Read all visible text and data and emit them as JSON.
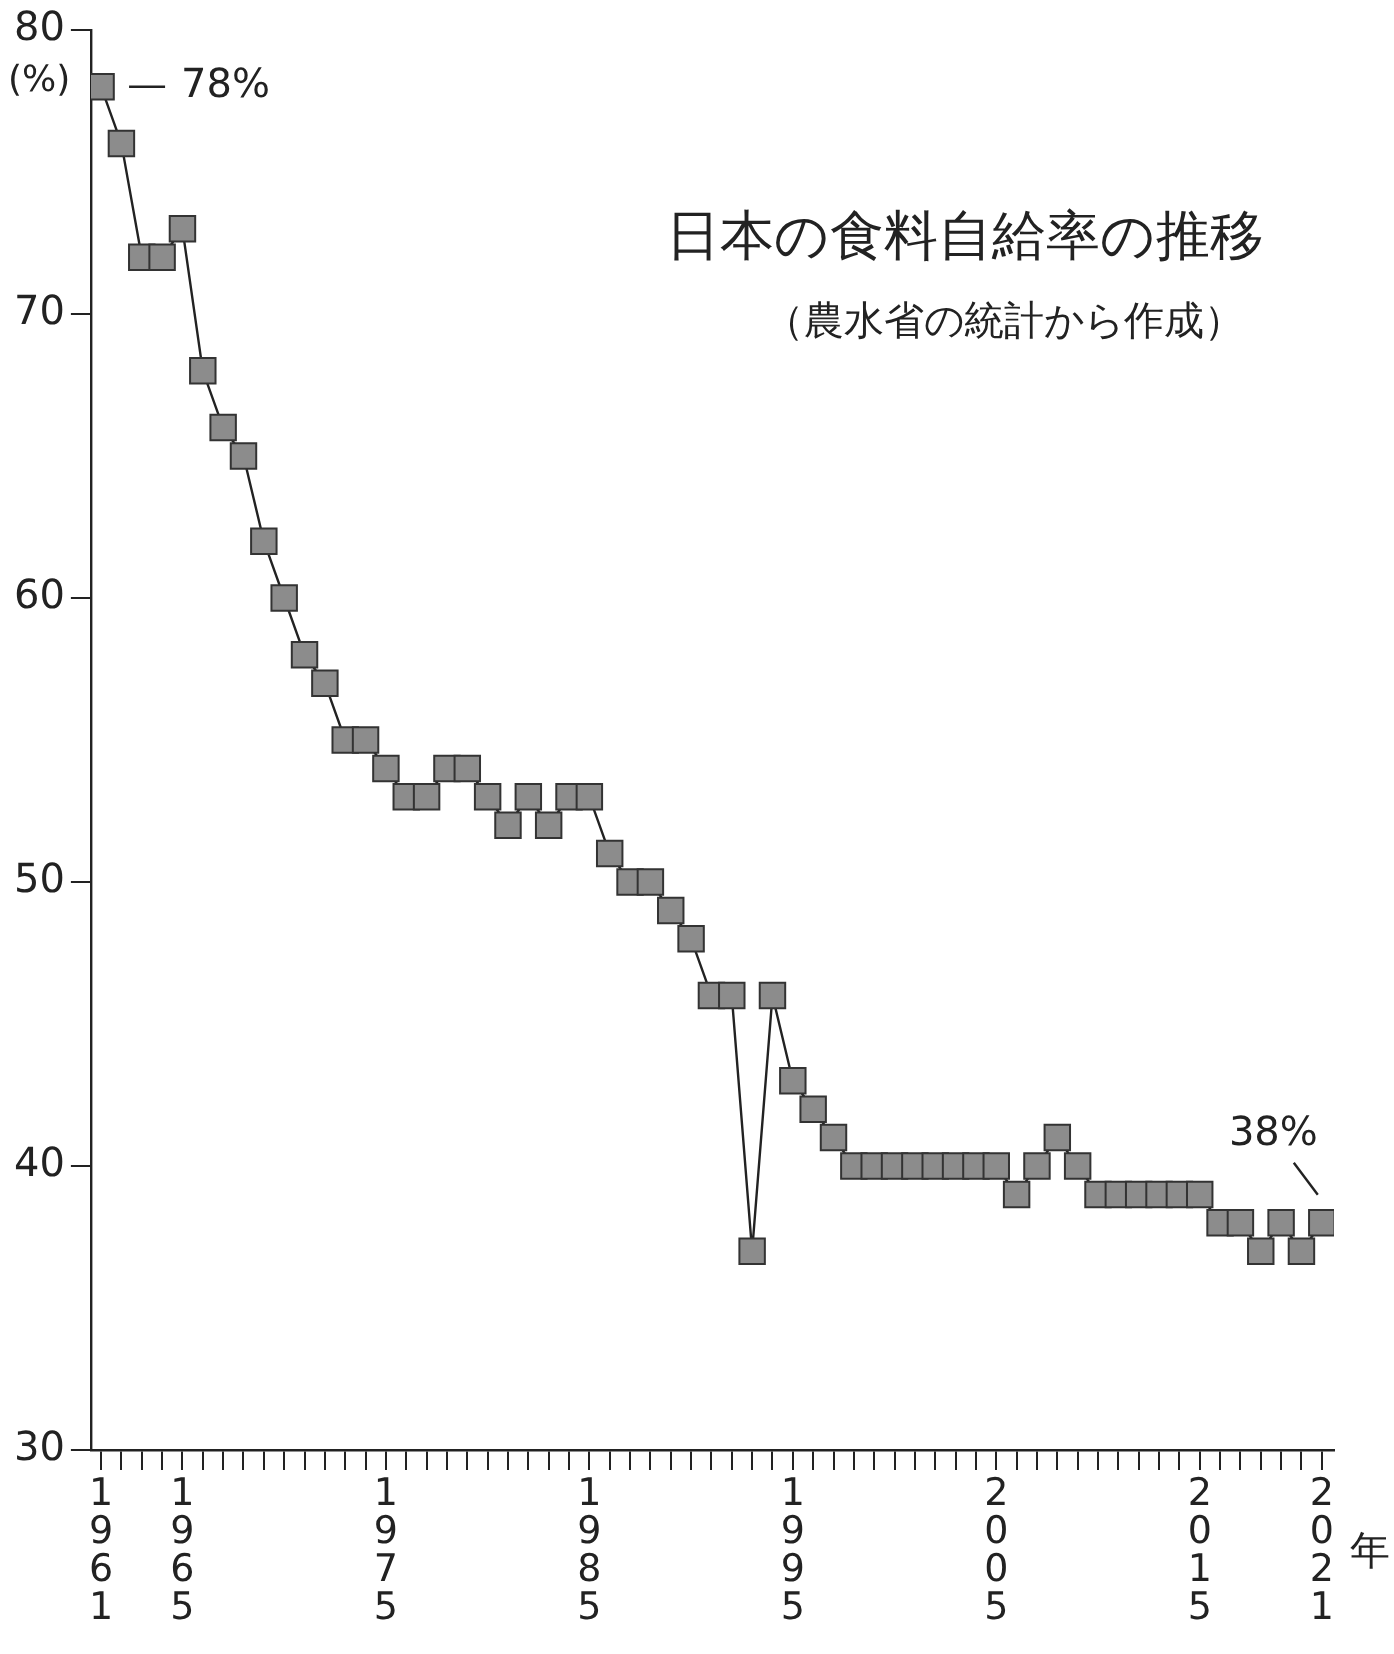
{
  "chart_data": {
    "type": "line",
    "title": "日本の食料自給率の推移",
    "subtitle": "（農水省の統計から作成）",
    "ylabel": "(%)",
    "xlabel": "年",
    "x": [
      1961,
      1962,
      1963,
      1964,
      1965,
      1966,
      1967,
      1968,
      1969,
      1970,
      1971,
      1972,
      1973,
      1974,
      1975,
      1976,
      1977,
      1978,
      1979,
      1980,
      1981,
      1982,
      1983,
      1984,
      1985,
      1986,
      1987,
      1988,
      1989,
      1990,
      1991,
      1992,
      1993,
      1994,
      1995,
      1996,
      1997,
      1998,
      1999,
      2000,
      2001,
      2002,
      2003,
      2004,
      2005,
      2006,
      2007,
      2008,
      2009,
      2010,
      2011,
      2012,
      2013,
      2014,
      2015,
      2016,
      2017,
      2018,
      2019,
      2020,
      2021
    ],
    "series": [
      {
        "color": "#8c8c8c",
        "values": [
          78,
          76,
          72,
          72,
          73,
          68,
          66,
          65,
          62,
          60,
          58,
          57,
          55,
          55,
          54,
          53,
          53,
          54,
          54,
          53,
          52,
          53,
          52,
          53,
          53,
          51,
          50,
          50,
          49,
          48,
          46,
          46,
          37,
          46,
          43,
          42,
          41,
          40,
          40,
          40,
          40,
          40,
          40,
          40,
          40,
          39,
          40,
          41,
          40,
          39,
          39,
          39,
          39,
          39,
          39,
          38,
          38,
          37,
          38,
          37,
          38
        ]
      }
    ],
    "xlim": [
      1960.5,
      2021.6
    ],
    "ylim": [
      30,
      80
    ],
    "yticks": [
      30,
      40,
      50,
      60,
      70,
      80
    ],
    "xticks": [
      {
        "value": 1961,
        "label": "1961"
      },
      {
        "value": 1962,
        "label": null
      },
      {
        "value": 1963,
        "label": null
      },
      {
        "value": 1964,
        "label": null
      },
      {
        "value": 1965,
        "label": "1965"
      },
      {
        "value": 1966,
        "label": null
      },
      {
        "value": 1967,
        "label": null
      },
      {
        "value": 1968,
        "label": null
      },
      {
        "value": 1969,
        "label": null
      },
      {
        "value": 1970,
        "label": null
      },
      {
        "value": 1971,
        "label": null
      },
      {
        "value": 1972,
        "label": null
      },
      {
        "value": 1973,
        "label": null
      },
      {
        "value": 1974,
        "label": null
      },
      {
        "value": 1975,
        "label": "1975"
      },
      {
        "value": 1976,
        "label": null
      },
      {
        "value": 1977,
        "label": null
      },
      {
        "value": 1978,
        "label": null
      },
      {
        "value": 1979,
        "label": null
      },
      {
        "value": 1980,
        "label": null
      },
      {
        "value": 1981,
        "label": null
      },
      {
        "value": 1982,
        "label": null
      },
      {
        "value": 1983,
        "label": null
      },
      {
        "value": 1984,
        "label": null
      },
      {
        "value": 1985,
        "label": "1985"
      },
      {
        "value": 1986,
        "label": null
      },
      {
        "value": 1987,
        "label": null
      },
      {
        "value": 1988,
        "label": null
      },
      {
        "value": 1989,
        "label": null
      },
      {
        "value": 1990,
        "label": null
      },
      {
        "value": 1991,
        "label": null
      },
      {
        "value": 1992,
        "label": null
      },
      {
        "value": 1993,
        "label": null
      },
      {
        "value": 1994,
        "label": null
      },
      {
        "value": 1995,
        "label": "1995"
      },
      {
        "value": 1996,
        "label": null
      },
      {
        "value": 1997,
        "label": null
      },
      {
        "value": 1998,
        "label": null
      },
      {
        "value": 1999,
        "label": null
      },
      {
        "value": 2000,
        "label": null
      },
      {
        "value": 2001,
        "label": null
      },
      {
        "value": 2002,
        "label": null
      },
      {
        "value": 2003,
        "label": null
      },
      {
        "value": 2004,
        "label": null
      },
      {
        "value": 2005,
        "label": "2005"
      },
      {
        "value": 2006,
        "label": null
      },
      {
        "value": 2007,
        "label": null
      },
      {
        "value": 2008,
        "label": null
      },
      {
        "value": 2009,
        "label": null
      },
      {
        "value": 2010,
        "label": null
      },
      {
        "value": 2011,
        "label": null
      },
      {
        "value": 2012,
        "label": null
      },
      {
        "value": 2013,
        "label": null
      },
      {
        "value": 2014,
        "label": null
      },
      {
        "value": 2015,
        "label": "2015"
      },
      {
        "value": 2016,
        "label": null
      },
      {
        "value": 2017,
        "label": null
      },
      {
        "value": 2018,
        "label": null
      },
      {
        "value": 2019,
        "label": null
      },
      {
        "value": 2020,
        "label": null
      },
      {
        "value": 2021,
        "label": "2021"
      }
    ],
    "annotations": [
      {
        "text": "78%",
        "x": 1961,
        "y": 78
      },
      {
        "text": "38%",
        "x": 2021,
        "y": 38
      }
    ],
    "marker": "square",
    "line_style": "solid",
    "grid": false,
    "legend": false
  }
}
